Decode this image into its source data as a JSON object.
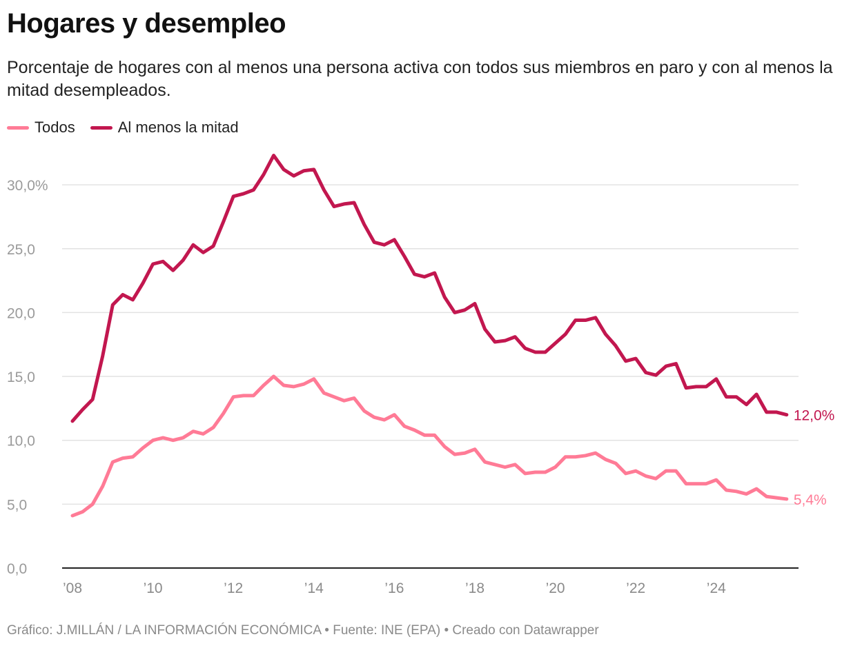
{
  "title": "Hogares y desempleo",
  "subtitle": "Porcentaje de hogares con al menos una persona activa con todos sus miembros en paro y con al menos la mitad desempleados.",
  "footer": "Gráfico: J.MILLÁN / LA INFORMACIÓN ECONÓMICA • Fuente: INE (EPA)  • Creado con Datawrapper",
  "chart_data": {
    "type": "line",
    "title": "Hogares y desempleo",
    "xlabel": "",
    "ylabel": "",
    "ylim": [
      0,
      32.5
    ],
    "xlim": [
      2008,
      2026
    ],
    "grid": true,
    "legend_placement": "top-left",
    "y_ticks": [
      0,
      5,
      10,
      15,
      20,
      25,
      30
    ],
    "y_tick_labels": [
      "0,0",
      "5,0",
      "10,0",
      "15,0",
      "20,0",
      "25,0",
      "30,0%"
    ],
    "x_ticks": [
      2008,
      2010,
      2012,
      2014,
      2016,
      2018,
      2020,
      2022,
      2024
    ],
    "x_tick_labels": [
      "’08",
      "’10",
      "’12",
      "’14",
      "’16",
      "’18",
      "’20",
      "’22",
      "’24"
    ],
    "x": [
      "2008T1",
      "2008T2",
      "2008T3",
      "2008T4",
      "2009T1",
      "2009T2",
      "2009T3",
      "2009T4",
      "2010T1",
      "2010T2",
      "2010T3",
      "2010T4",
      "2011T1",
      "2011T2",
      "2011T3",
      "2011T4",
      "2012T1",
      "2012T2",
      "2012T3",
      "2012T4",
      "2013T1",
      "2013T2",
      "2013T3",
      "2013T4",
      "2014T1",
      "2014T2",
      "2014T3",
      "2014T4",
      "2015T1",
      "2015T2",
      "2015T3",
      "2015T4",
      "2016T1",
      "2016T2",
      "2016T3",
      "2016T4",
      "2017T1",
      "2017T2",
      "2017T3",
      "2017T4",
      "2018T1",
      "2018T2",
      "2018T3",
      "2018T4",
      "2019T1",
      "2019T2",
      "2019T3",
      "2019T4",
      "2020T1",
      "2020T2",
      "2020T3",
      "2020T4",
      "2021T1",
      "2021T2",
      "2021T3",
      "2021T4",
      "2022T1",
      "2022T2",
      "2022T3",
      "2022T4",
      "2023T1",
      "2023T2",
      "2023T3",
      "2023T4",
      "2024T1",
      "2024T2",
      "2024T3",
      "2024T4",
      "2025T1",
      "2025T2",
      "2025T3",
      "2025T4"
    ],
    "series": [
      {
        "name": "Todos",
        "color": "#ff7b96",
        "end_label": "5,4%",
        "values": [
          4.1,
          4.4,
          5.0,
          6.4,
          8.3,
          8.6,
          8.7,
          9.4,
          10.0,
          10.2,
          10.0,
          10.2,
          10.7,
          10.5,
          11.0,
          12.1,
          13.4,
          13.5,
          13.5,
          14.3,
          15.0,
          14.3,
          14.2,
          14.4,
          14.8,
          13.7,
          13.4,
          13.1,
          13.3,
          12.3,
          11.8,
          11.6,
          12.0,
          11.1,
          10.8,
          10.4,
          10.4,
          9.5,
          8.9,
          9.0,
          9.3,
          8.3,
          8.1,
          7.9,
          8.1,
          7.4,
          7.5,
          7.5,
          7.9,
          8.7,
          8.7,
          8.8,
          9.0,
          8.5,
          8.2,
          7.4,
          7.6,
          7.2,
          7.0,
          7.6,
          7.6,
          6.6,
          6.6,
          6.6,
          6.9,
          6.1,
          6.0,
          5.8,
          6.2,
          5.6,
          5.5,
          5.4
        ]
      },
      {
        "name": "Al menos la mitad",
        "color": "#c2174f",
        "end_label": "12,0%",
        "values": [
          11.5,
          12.4,
          13.2,
          16.6,
          20.6,
          21.4,
          21.0,
          22.3,
          23.8,
          24.0,
          23.3,
          24.1,
          25.3,
          24.7,
          25.2,
          27.1,
          29.1,
          29.3,
          29.6,
          30.8,
          32.3,
          31.2,
          30.7,
          31.1,
          31.2,
          29.6,
          28.3,
          28.5,
          28.6,
          26.9,
          25.5,
          25.3,
          25.7,
          24.4,
          23.0,
          22.8,
          23.1,
          21.2,
          20.0,
          20.2,
          20.7,
          18.7,
          17.7,
          17.8,
          18.1,
          17.2,
          16.9,
          16.9,
          17.6,
          18.3,
          19.4,
          19.4,
          19.6,
          18.3,
          17.4,
          16.2,
          16.4,
          15.3,
          15.1,
          15.8,
          16.0,
          14.1,
          14.2,
          14.2,
          14.8,
          13.4,
          13.4,
          12.8,
          13.6,
          12.2,
          12.2,
          12.0
        ]
      }
    ]
  }
}
